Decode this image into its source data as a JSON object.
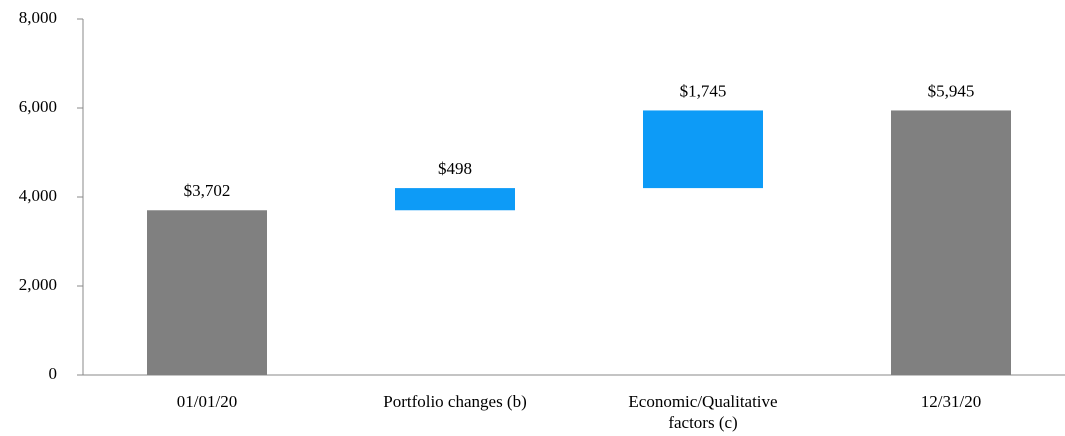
{
  "chart_data": {
    "type": "waterfall",
    "categories": [
      "01/01/20",
      "Portfolio changes (b)",
      "Economic/Qualitative factors (c)",
      "12/31/20"
    ],
    "values": [
      3702,
      498,
      1745,
      5945
    ],
    "value_labels": [
      "$3,702",
      "$498",
      "$1,745",
      "$5,945"
    ],
    "measures": [
      "absolute",
      "relative",
      "relative",
      "total"
    ],
    "colors": [
      "#808080",
      "#0d9bf7",
      "#0d9bf7",
      "#808080"
    ],
    "ylim": [
      0,
      8000
    ],
    "yticks": [
      0,
      {
        "value": 2000,
        "label": "2,000"
      },
      {
        "value": 4000,
        "label": "4,000"
      },
      {
        "value": 6000,
        "label": "6,000"
      },
      {
        "value": 8000,
        "label": "8,000"
      }
    ]
  }
}
